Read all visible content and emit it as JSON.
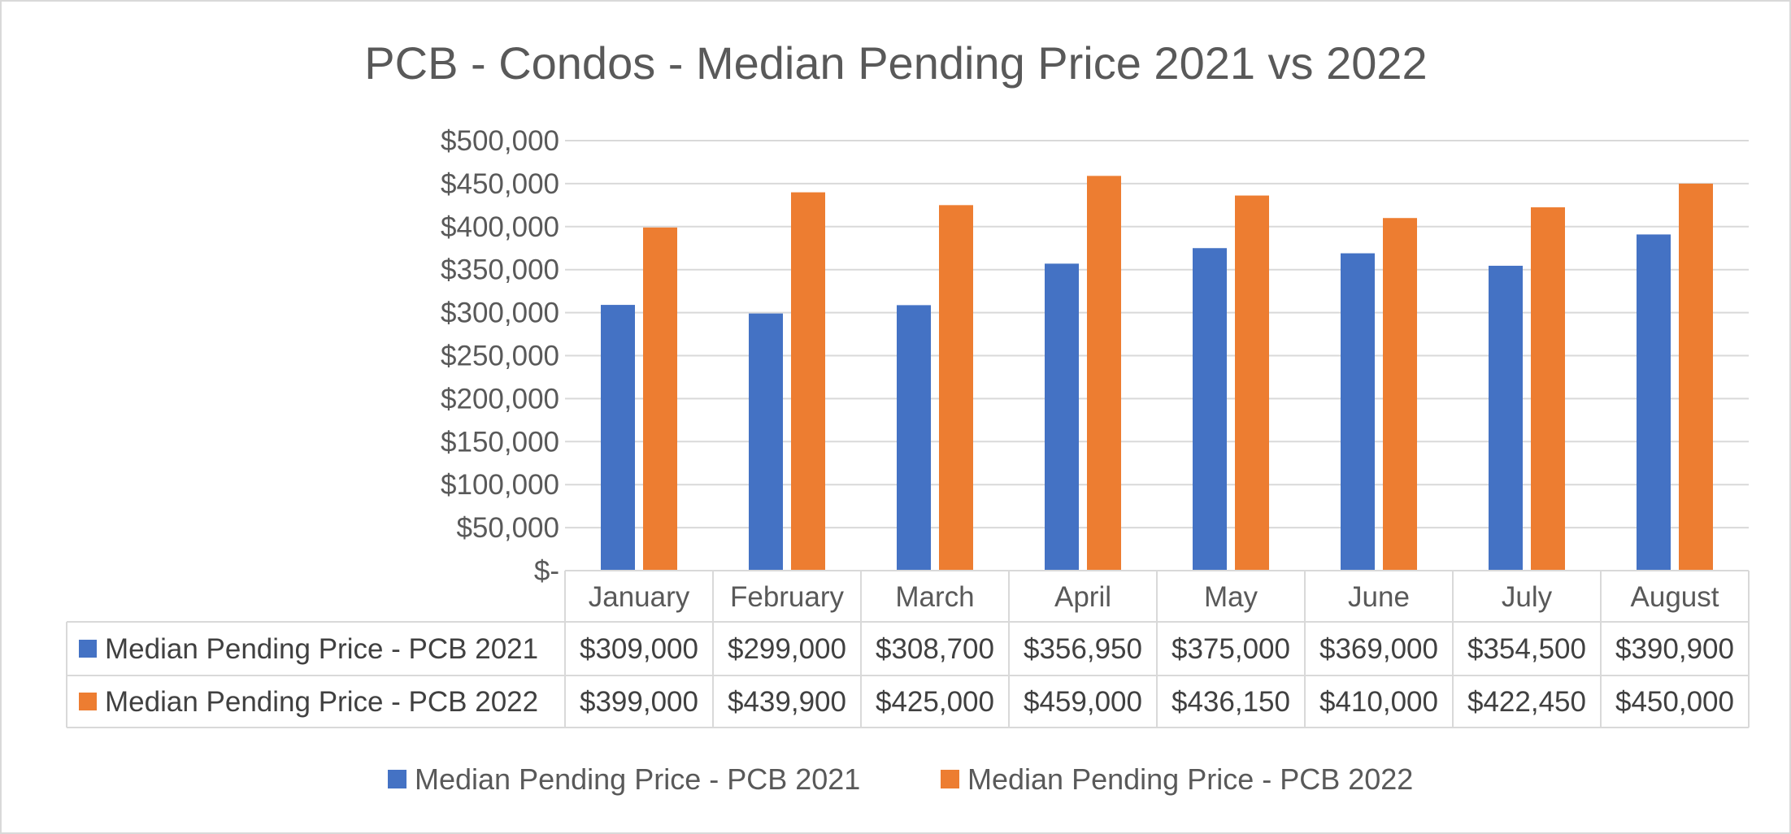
{
  "colors": {
    "series_2021": "#4472c4",
    "series_2022": "#ed7d31",
    "gridline": "#d9d9d9",
    "text": "#595959"
  },
  "chart_data": {
    "type": "bar",
    "title": "PCB - Condos - Median Pending Price 2021 vs 2022",
    "xlabel": "",
    "ylabel": "",
    "ylim": [
      0,
      500000
    ],
    "y_ticks": [
      0,
      50000,
      100000,
      150000,
      200000,
      250000,
      300000,
      350000,
      400000,
      450000,
      500000
    ],
    "y_tick_labels": [
      "$-",
      "$50,000",
      "$100,000",
      "$150,000",
      "$200,000",
      "$250,000",
      "$300,000",
      "$350,000",
      "$400,000",
      "$450,000",
      "$500,000"
    ],
    "grid": true,
    "legend_position": "bottom",
    "categories": [
      "January",
      "February",
      "March",
      "April",
      "May",
      "June",
      "July",
      "August"
    ],
    "series": [
      {
        "name": "Median Pending Price - PCB 2021",
        "color": "#4472c4",
        "values": [
          309000,
          299000,
          308700,
          356950,
          375000,
          369000,
          354500,
          390900
        ],
        "value_labels": [
          "$309,000",
          "$299,000",
          "$308,700",
          "$356,950",
          "$375,000",
          "$369,000",
          "$354,500",
          "$390,900"
        ]
      },
      {
        "name": "Median Pending Price - PCB 2022",
        "color": "#ed7d31",
        "values": [
          399000,
          439900,
          425000,
          459000,
          436150,
          410000,
          422450,
          450000
        ],
        "value_labels": [
          "$399,000",
          "$439,900",
          "$425,000",
          "$459,000",
          "$436,150",
          "$410,000",
          "$422,450",
          "$450,000"
        ]
      }
    ]
  }
}
